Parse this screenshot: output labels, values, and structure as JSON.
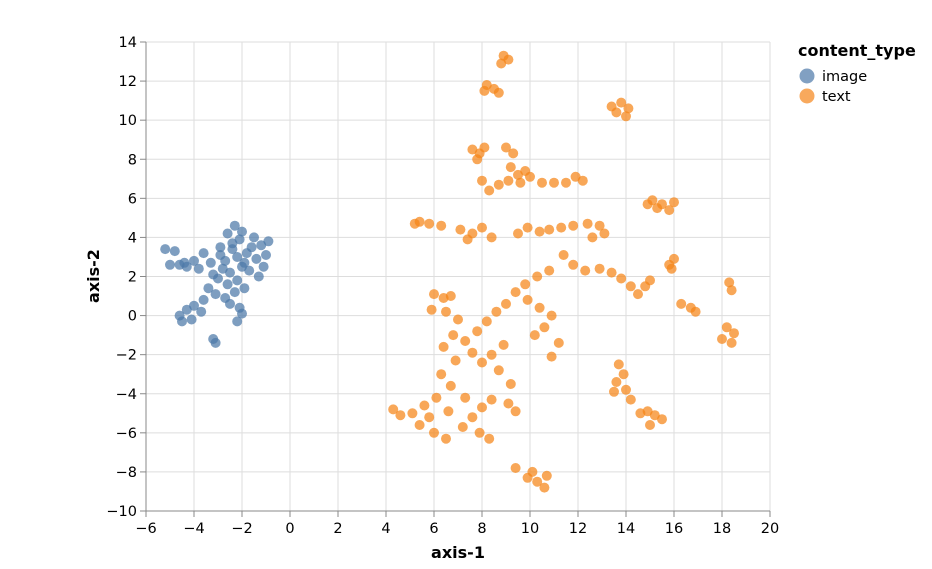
{
  "chart_data": {
    "type": "scatter",
    "xlabel": "axis-1",
    "ylabel": "axis-2",
    "xlim": [
      -6,
      20
    ],
    "ylim": [
      -10,
      14
    ],
    "x_ticks": [
      -6,
      -4,
      -2,
      0,
      2,
      4,
      6,
      8,
      10,
      12,
      14,
      16,
      18,
      20
    ],
    "y_ticks": [
      -10,
      -8,
      -6,
      -4,
      -2,
      0,
      2,
      4,
      6,
      8,
      10,
      12,
      14
    ],
    "x_tick_labels": [
      "−6",
      "−4",
      "−2",
      "0",
      "2",
      "4",
      "6",
      "8",
      "10",
      "12",
      "14",
      "16",
      "18",
      "20"
    ],
    "y_tick_labels": [
      "−10",
      "−8",
      "−6",
      "−4",
      "−2",
      "0",
      "2",
      "4",
      "6",
      "8",
      "10",
      "12",
      "14"
    ],
    "grid": true,
    "legend": {
      "title": "content_type",
      "position": "right"
    },
    "series": [
      {
        "name": "image",
        "color": "#4c78a8",
        "points": [
          [
            -2.3,
            4.6
          ],
          [
            -2.6,
            4.2
          ],
          [
            -2.0,
            4.3
          ],
          [
            -1.5,
            4.0
          ],
          [
            -0.9,
            3.8
          ],
          [
            -1.2,
            3.6
          ],
          [
            -2.4,
            3.7
          ],
          [
            -2.9,
            3.5
          ],
          [
            -1.8,
            3.2
          ],
          [
            -2.2,
            3.0
          ],
          [
            -2.7,
            2.8
          ],
          [
            -1.4,
            2.9
          ],
          [
            -1.0,
            3.1
          ],
          [
            -2.0,
            2.5
          ],
          [
            -2.5,
            2.2
          ],
          [
            -1.7,
            2.3
          ],
          [
            -3.6,
            3.2
          ],
          [
            -4.0,
            2.8
          ],
          [
            -4.6,
            2.6
          ],
          [
            -5.0,
            2.6
          ],
          [
            -4.3,
            2.5
          ],
          [
            -5.2,
            3.4
          ],
          [
            -4.8,
            3.3
          ],
          [
            -3.8,
            2.4
          ],
          [
            -3.3,
            2.7
          ],
          [
            -3.0,
            1.9
          ],
          [
            -2.6,
            1.6
          ],
          [
            -2.2,
            1.8
          ],
          [
            -3.4,
            1.4
          ],
          [
            -3.1,
            1.1
          ],
          [
            -2.7,
            0.9
          ],
          [
            -2.3,
            1.2
          ],
          [
            -1.9,
            1.4
          ],
          [
            -3.6,
            0.8
          ],
          [
            -4.0,
            0.5
          ],
          [
            -4.3,
            0.3
          ],
          [
            -4.6,
            0.0
          ],
          [
            -4.5,
            -0.3
          ],
          [
            -4.1,
            -0.2
          ],
          [
            -3.7,
            0.2
          ],
          [
            -2.5,
            0.6
          ],
          [
            -2.1,
            0.4
          ],
          [
            -2.0,
            0.1
          ],
          [
            -2.2,
            -0.3
          ],
          [
            -3.2,
            -1.2
          ],
          [
            -3.1,
            -1.4
          ],
          [
            -1.1,
            2.5
          ],
          [
            -1.3,
            2.0
          ],
          [
            -2.8,
            2.4
          ],
          [
            -3.2,
            2.1
          ],
          [
            -2.4,
            3.4
          ],
          [
            -1.6,
            3.5
          ],
          [
            -2.1,
            3.9
          ],
          [
            -1.9,
            2.7
          ],
          [
            -2.9,
            3.1
          ],
          [
            -4.4,
            2.7
          ]
        ]
      },
      {
        "name": "text",
        "color": "#f58518",
        "points": [
          [
            8.9,
            13.3
          ],
          [
            9.1,
            13.1
          ],
          [
            8.8,
            12.9
          ],
          [
            8.2,
            11.8
          ],
          [
            8.5,
            11.6
          ],
          [
            8.7,
            11.4
          ],
          [
            8.1,
            11.5
          ],
          [
            13.4,
            10.7
          ],
          [
            13.8,
            10.9
          ],
          [
            14.1,
            10.6
          ],
          [
            13.6,
            10.4
          ],
          [
            14.0,
            10.2
          ],
          [
            7.6,
            8.5
          ],
          [
            7.9,
            8.3
          ],
          [
            8.1,
            8.6
          ],
          [
            7.8,
            8.0
          ],
          [
            9.0,
            8.6
          ],
          [
            9.3,
            8.3
          ],
          [
            9.2,
            7.6
          ],
          [
            9.5,
            7.2
          ],
          [
            9.8,
            7.4
          ],
          [
            10.0,
            7.1
          ],
          [
            9.6,
            6.8
          ],
          [
            9.1,
            6.9
          ],
          [
            8.7,
            6.7
          ],
          [
            8.0,
            6.9
          ],
          [
            8.3,
            6.4
          ],
          [
            11.9,
            7.1
          ],
          [
            12.2,
            6.9
          ],
          [
            11.5,
            6.8
          ],
          [
            11.0,
            6.8
          ],
          [
            10.5,
            6.8
          ],
          [
            15.1,
            5.9
          ],
          [
            15.5,
            5.7
          ],
          [
            15.8,
            5.4
          ],
          [
            15.3,
            5.5
          ],
          [
            14.9,
            5.7
          ],
          [
            16.0,
            5.8
          ],
          [
            5.4,
            4.8
          ],
          [
            5.8,
            4.7
          ],
          [
            6.3,
            4.6
          ],
          [
            5.2,
            4.7
          ],
          [
            7.1,
            4.4
          ],
          [
            7.6,
            4.2
          ],
          [
            8.0,
            4.5
          ],
          [
            8.4,
            4.0
          ],
          [
            7.4,
            3.9
          ],
          [
            9.5,
            4.2
          ],
          [
            9.9,
            4.5
          ],
          [
            10.4,
            4.3
          ],
          [
            10.8,
            4.4
          ],
          [
            11.3,
            4.5
          ],
          [
            11.8,
            4.6
          ],
          [
            12.4,
            4.7
          ],
          [
            12.9,
            4.6
          ],
          [
            13.1,
            4.2
          ],
          [
            12.6,
            4.0
          ],
          [
            11.4,
            3.1
          ],
          [
            11.8,
            2.6
          ],
          [
            12.3,
            2.3
          ],
          [
            12.9,
            2.4
          ],
          [
            13.4,
            2.2
          ],
          [
            13.8,
            1.9
          ],
          [
            14.2,
            1.5
          ],
          [
            14.5,
            1.1
          ],
          [
            14.8,
            1.5
          ],
          [
            15.0,
            1.8
          ],
          [
            15.8,
            2.6
          ],
          [
            16.0,
            2.9
          ],
          [
            15.9,
            2.4
          ],
          [
            16.3,
            0.6
          ],
          [
            16.7,
            0.4
          ],
          [
            16.9,
            0.2
          ],
          [
            18.3,
            1.7
          ],
          [
            18.4,
            1.3
          ],
          [
            18.2,
            -0.6
          ],
          [
            18.5,
            -0.9
          ],
          [
            18.0,
            -1.2
          ],
          [
            18.4,
            -1.4
          ],
          [
            10.8,
            2.3
          ],
          [
            10.3,
            2.0
          ],
          [
            9.8,
            1.6
          ],
          [
            9.4,
            1.2
          ],
          [
            9.9,
            0.8
          ],
          [
            10.4,
            0.4
          ],
          [
            10.9,
            0.0
          ],
          [
            10.6,
            -0.6
          ],
          [
            10.2,
            -1.0
          ],
          [
            11.2,
            -1.4
          ],
          [
            10.9,
            -2.1
          ],
          [
            9.0,
            0.6
          ],
          [
            8.6,
            0.2
          ],
          [
            8.2,
            -0.3
          ],
          [
            7.8,
            -0.8
          ],
          [
            7.3,
            -1.3
          ],
          [
            7.6,
            -1.9
          ],
          [
            8.0,
            -2.4
          ],
          [
            8.4,
            -2.0
          ],
          [
            8.9,
            -1.5
          ],
          [
            8.7,
            -2.8
          ],
          [
            9.2,
            -3.5
          ],
          [
            8.4,
            -4.3
          ],
          [
            9.1,
            -4.5
          ],
          [
            9.4,
            -4.9
          ],
          [
            6.0,
            1.1
          ],
          [
            6.4,
            0.9
          ],
          [
            6.7,
            1.0
          ],
          [
            5.9,
            0.3
          ],
          [
            6.5,
            0.2
          ],
          [
            7.0,
            -0.2
          ],
          [
            6.8,
            -1.0
          ],
          [
            6.4,
            -1.6
          ],
          [
            6.9,
            -2.3
          ],
          [
            6.3,
            -3.0
          ],
          [
            6.7,
            -3.6
          ],
          [
            6.1,
            -4.2
          ],
          [
            5.6,
            -4.6
          ],
          [
            5.1,
            -5.0
          ],
          [
            4.6,
            -5.1
          ],
          [
            4.3,
            -4.8
          ],
          [
            5.4,
            -5.6
          ],
          [
            6.0,
            -6.0
          ],
          [
            6.5,
            -6.3
          ],
          [
            7.2,
            -5.7
          ],
          [
            7.6,
            -5.2
          ],
          [
            7.9,
            -6.0
          ],
          [
            8.3,
            -6.3
          ],
          [
            8.0,
            -4.7
          ],
          [
            7.3,
            -4.2
          ],
          [
            5.8,
            -5.2
          ],
          [
            6.6,
            -4.9
          ],
          [
            10.1,
            -8.0
          ],
          [
            10.3,
            -8.5
          ],
          [
            10.6,
            -8.8
          ],
          [
            9.9,
            -8.3
          ],
          [
            10.7,
            -8.2
          ],
          [
            9.4,
            -7.8
          ],
          [
            13.7,
            -2.5
          ],
          [
            13.9,
            -3.0
          ],
          [
            13.6,
            -3.4
          ],
          [
            14.0,
            -3.8
          ],
          [
            13.5,
            -3.9
          ],
          [
            14.2,
            -4.3
          ],
          [
            14.9,
            -4.9
          ],
          [
            15.2,
            -5.1
          ],
          [
            15.5,
            -5.3
          ],
          [
            15.0,
            -5.6
          ],
          [
            14.6,
            -5.0
          ]
        ]
      }
    ]
  }
}
